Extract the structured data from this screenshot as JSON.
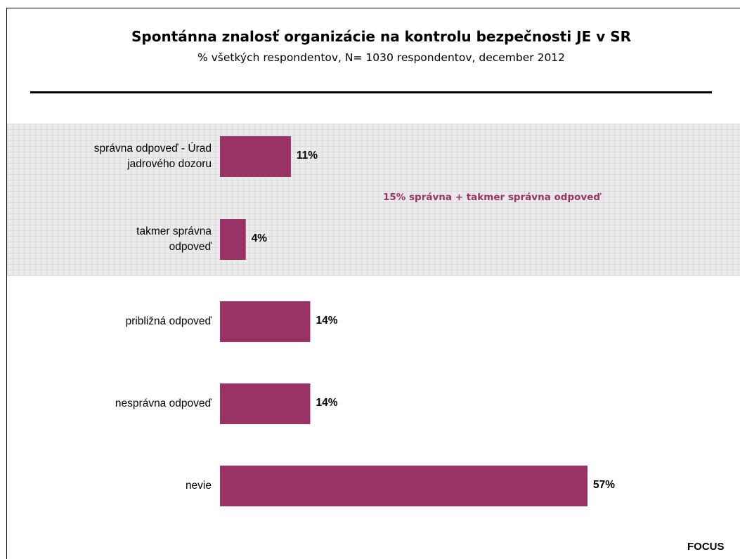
{
  "colors": {
    "bar": "#993366",
    "annotation": "#993366",
    "highlight_band": "#ebebeb"
  },
  "chart_data": {
    "type": "bar",
    "orientation": "horizontal",
    "title": "Spontánna znalosť organizácie na kontrolu bezpečnosti JE v SR",
    "subtitle": "% všetkých respondentov, N= 1030 respondentov, december 2012",
    "categories": [
      "správna odpoveď - Úrad jadrového dozoru",
      "takmer správna odpoveď",
      "približná odpoveď",
      "nesprávna odpoveď",
      "nevie"
    ],
    "values": [
      11,
      4,
      14,
      14,
      57
    ],
    "value_labels": [
      "11%",
      "4%",
      "14%",
      "14%",
      "57%"
    ],
    "unit": "%",
    "xlim": [
      0,
      57
    ],
    "grid": false,
    "legend": "none",
    "annotation": "15% správna + takmer správna odpoveď",
    "highlighted_categories": [
      "správna odpoveď - Úrad jadrového dozoru",
      "takmer správna odpoveď"
    ]
  },
  "footer": {
    "brand": "FOCUS"
  }
}
